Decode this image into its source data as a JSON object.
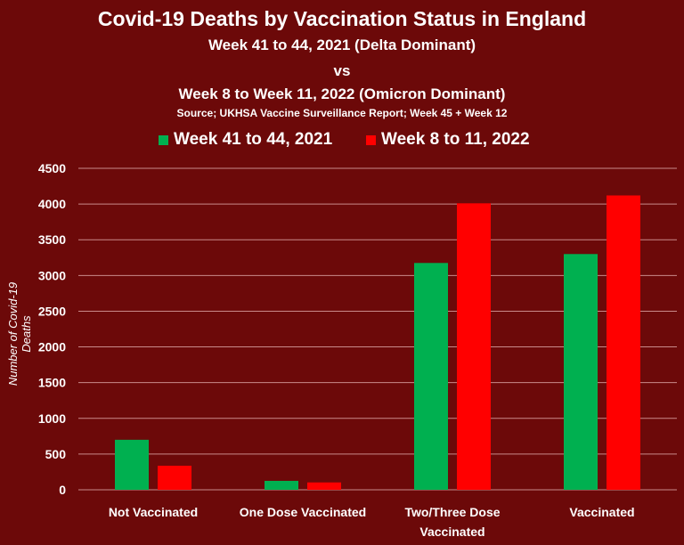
{
  "chart_data": {
    "type": "bar",
    "title": "Covid-19 Deaths by Vaccination Status in England",
    "subtitle_lines": [
      "Week 41 to 44, 2021 (Delta Dominant)",
      "vs",
      "Week 8 to Week 11, 2022 (Omicron Dominant)"
    ],
    "source": "Source; UKHSA Vaccine Surveillance Report; Week 45 + Week 12",
    "xlabel": "",
    "ylabel": "Number of Covid-19 Deaths",
    "ylim": [
      0,
      4500
    ],
    "yticks": [
      0,
      500,
      1000,
      1500,
      2000,
      2500,
      3000,
      3500,
      4000,
      4500
    ],
    "grid": true,
    "legend_position": "top",
    "categories": [
      [
        "Not Vaccinated"
      ],
      [
        "One Dose Vaccinated"
      ],
      [
        "Two/Three Dose",
        "Vaccinated"
      ],
      [
        "Vaccinated"
      ]
    ],
    "series": [
      {
        "name": "Week 41 to 44, 2021",
        "color": "#00b050",
        "values": [
          700,
          125,
          3175,
          3300
        ]
      },
      {
        "name": "Week 8 to 11, 2022",
        "color": "#ff0000",
        "values": [
          337,
          103,
          4010,
          4120
        ]
      }
    ]
  },
  "colors": {
    "background": "#6c0909",
    "grid": "#c98a8a"
  }
}
